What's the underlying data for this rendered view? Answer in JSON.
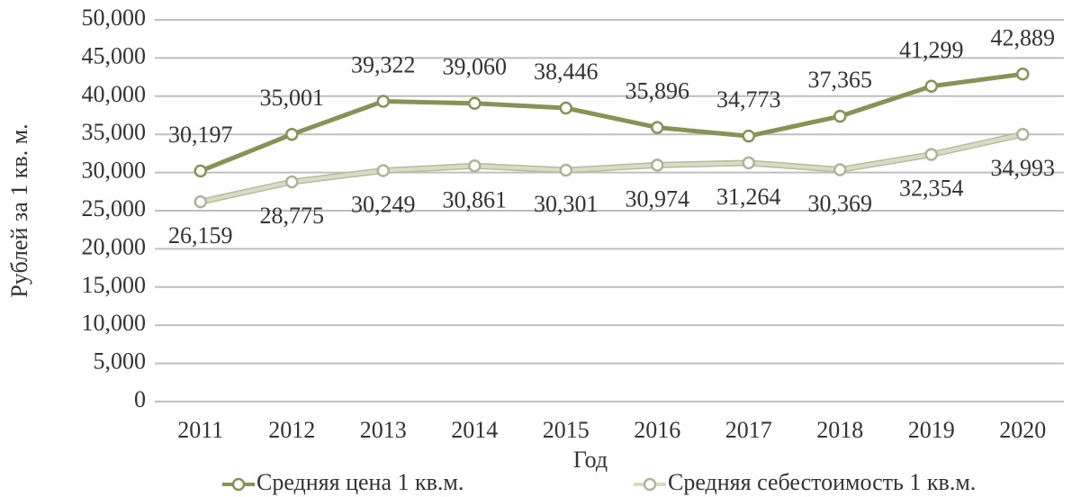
{
  "chart_data": {
    "type": "line",
    "x_label": "Год",
    "y_label": "Рублей за 1 кв. м.",
    "categories": [
      "2011",
      "2012",
      "2013",
      "2014",
      "2015",
      "2016",
      "2017",
      "2018",
      "2019",
      "2020"
    ],
    "series": [
      {
        "name": "Средняя цена 1 кв.м.",
        "color": "#849456",
        "values": [
          30197,
          35001,
          39322,
          39060,
          38446,
          35896,
          34773,
          37365,
          41299,
          42889
        ],
        "value_labels": [
          "30,197",
          "35,001",
          "39,322",
          "39,060",
          "38,446",
          "35,896",
          "34,773",
          "37,365",
          "41,299",
          "42,889"
        ]
      },
      {
        "name": "Средняя себестоимость 1 кв.м.",
        "color": "#d9dcc2",
        "values": [
          26159,
          28775,
          30249,
          30861,
          30301,
          30974,
          31264,
          30369,
          32354,
          34993
        ],
        "value_labels": [
          "26,159",
          "28,775",
          "30,249",
          "30,861",
          "30,301",
          "30,974",
          "31,264",
          "30,369",
          "32,354",
          "34,993"
        ]
      }
    ],
    "ylim": [
      0,
      50000
    ],
    "yticks": [
      0,
      {
        "value": 5000,
        "label": "5,000"
      },
      {
        "value": 10000,
        "label": "10,000"
      },
      {
        "value": 15000,
        "label": "15,000"
      },
      {
        "value": 20000,
        "label": "20,000"
      },
      {
        "value": 25000,
        "label": "25,000"
      },
      {
        "value": 30000,
        "label": "30,000"
      },
      {
        "value": 35000,
        "label": "35,000"
      },
      {
        "value": 40000,
        "label": "40,000"
      },
      {
        "value": 45000,
        "label": "45,000"
      },
      {
        "value": 50000,
        "label": "50,000"
      }
    ],
    "grid": true,
    "legend": "bottom"
  }
}
